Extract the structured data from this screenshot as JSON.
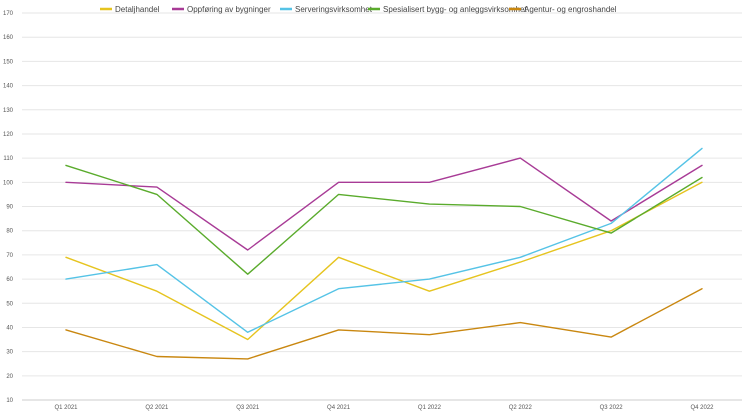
{
  "chart_data": {
    "type": "line",
    "title": "",
    "xlabel": "",
    "ylabel": "",
    "ylim": [
      10,
      170
    ],
    "yticks": [
      10,
      20,
      30,
      40,
      50,
      60,
      70,
      80,
      90,
      100,
      110,
      120,
      130,
      140,
      150,
      160,
      170
    ],
    "grid": true,
    "legend_position": "top",
    "categories": [
      "Q1 2021",
      "Q2 2021",
      "Q3 2021",
      "Q4 2021",
      "Q1 2022",
      "Q2 2022",
      "Q3 2022",
      "Q4 2022"
    ],
    "series": [
      {
        "name": "Detaljhandel",
        "color": "#e6c41f",
        "values": [
          69,
          55,
          35,
          69,
          55,
          67,
          80,
          100
        ]
      },
      {
        "name": "Oppføring av bygninger",
        "color": "#a83b96",
        "values": [
          100,
          98,
          72,
          100,
          100,
          110,
          84,
          107
        ]
      },
      {
        "name": "Serveringsvirksomhet",
        "color": "#55c3e6",
        "values": [
          60,
          66,
          38,
          56,
          60,
          69,
          83,
          114
        ]
      },
      {
        "name": "Spesialisert bygg- og anleggsvirksomhet",
        "color": "#5aab2c",
        "values": [
          107,
          95,
          62,
          95,
          91,
          90,
          79,
          102
        ]
      },
      {
        "name": "Agentur- og engroshandel",
        "color": "#c98710",
        "values": [
          39,
          28,
          27,
          39,
          37,
          42,
          36,
          56
        ]
      }
    ]
  }
}
